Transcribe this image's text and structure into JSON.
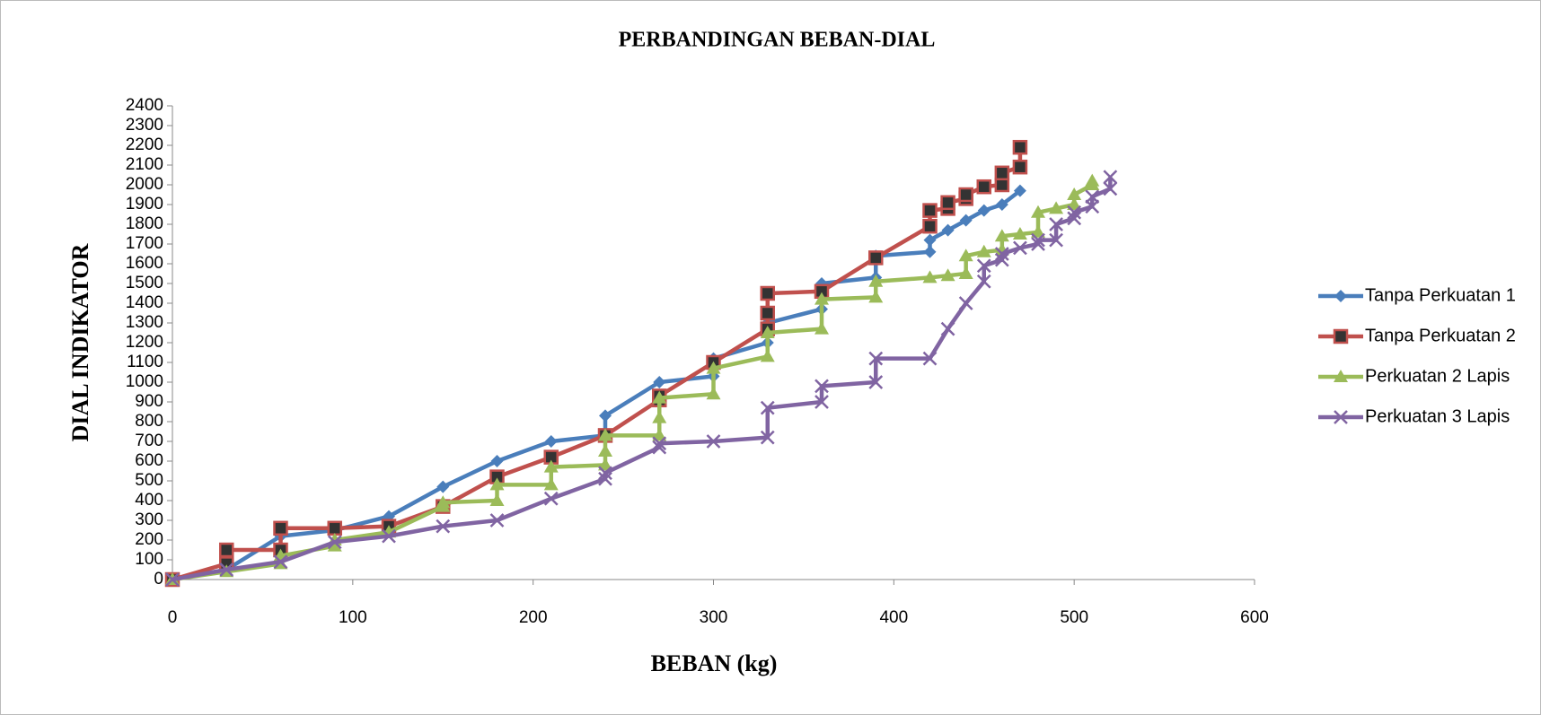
{
  "chart_data": {
    "type": "line",
    "title": "PERBANDINGAN BEBAN-DIAL",
    "x_label": "BEBAN (kg)",
    "y_label": "DIAL INDIKATOR",
    "xlim": [
      0,
      600
    ],
    "xticks": [
      0,
      100,
      200,
      300,
      400,
      500,
      600
    ],
    "ylim": [
      0,
      2400
    ],
    "yticks": [
      0,
      100,
      200,
      300,
      400,
      500,
      600,
      700,
      800,
      900,
      1000,
      1100,
      1200,
      1300,
      1400,
      1500,
      1600,
      1700,
      1800,
      1900,
      2000,
      2100,
      2200,
      2300,
      2400
    ],
    "legend": "right",
    "series": [
      {
        "name": "Tanpa Perkuatan 1",
        "color": "#4a7ebb",
        "marker": "diamond",
        "x": [
          0,
          30,
          60,
          90,
          120,
          150,
          180,
          210,
          240,
          240,
          270,
          300,
          300,
          330,
          330,
          360,
          360,
          390,
          390,
          420,
          420,
          430,
          440,
          450,
          460,
          470
        ],
        "values": [
          0,
          50,
          220,
          250,
          320,
          470,
          600,
          700,
          730,
          830,
          1000,
          1030,
          1120,
          1200,
          1300,
          1370,
          1500,
          1530,
          1640,
          1660,
          1720,
          1770,
          1820,
          1870,
          1900,
          1970
        ]
      },
      {
        "name": "Tanpa Perkuatan 2",
        "color": "#c0504d",
        "marker": "square",
        "x": [
          0,
          30,
          30,
          60,
          60,
          90,
          120,
          150,
          180,
          210,
          240,
          270,
          270,
          300,
          330,
          330,
          330,
          360,
          390,
          420,
          420,
          430,
          430,
          440,
          440,
          450,
          460,
          460,
          470,
          470
        ],
        "values": [
          0,
          80,
          150,
          150,
          260,
          260,
          270,
          370,
          520,
          620,
          730,
          910,
          930,
          1100,
          1270,
          1350,
          1450,
          1460,
          1630,
          1790,
          1870,
          1880,
          1910,
          1930,
          1950,
          1990,
          2000,
          2060,
          2090,
          2190
        ]
      },
      {
        "name": "Perkuatan 2 Lapis",
        "color": "#9bbb59",
        "marker": "triangle",
        "x": [
          0,
          30,
          60,
          60,
          90,
          90,
          120,
          150,
          150,
          180,
          180,
          210,
          210,
          240,
          240,
          240,
          270,
          270,
          270,
          300,
          300,
          330,
          330,
          360,
          360,
          390,
          390,
          420,
          430,
          440,
          440,
          450,
          460,
          460,
          470,
          480,
          480,
          490,
          500,
          500,
          510,
          510
        ],
        "values": [
          0,
          40,
          80,
          120,
          170,
          200,
          240,
          370,
          390,
          400,
          480,
          480,
          570,
          580,
          650,
          730,
          730,
          820,
          920,
          940,
          1070,
          1130,
          1250,
          1270,
          1420,
          1430,
          1510,
          1530,
          1540,
          1550,
          1640,
          1660,
          1670,
          1740,
          1750,
          1760,
          1860,
          1880,
          1900,
          1950,
          2000,
          2020
        ]
      },
      {
        "name": "Perkuatan 3 Lapis",
        "color": "#8064a2",
        "marker": "x",
        "x": [
          0,
          30,
          60,
          90,
          120,
          150,
          180,
          210,
          240,
          240,
          270,
          270,
          300,
          330,
          330,
          360,
          360,
          390,
          390,
          420,
          430,
          440,
          450,
          450,
          460,
          460,
          470,
          480,
          480,
          490,
          490,
          500,
          500,
          510,
          510,
          520,
          520
        ],
        "values": [
          0,
          50,
          90,
          190,
          220,
          270,
          300,
          410,
          510,
          540,
          670,
          690,
          700,
          720,
          870,
          900,
          980,
          1000,
          1120,
          1120,
          1270,
          1400,
          1510,
          1590,
          1620,
          1650,
          1680,
          1700,
          1720,
          1720,
          1800,
          1830,
          1860,
          1890,
          1940,
          1980,
          2040
        ]
      }
    ]
  }
}
